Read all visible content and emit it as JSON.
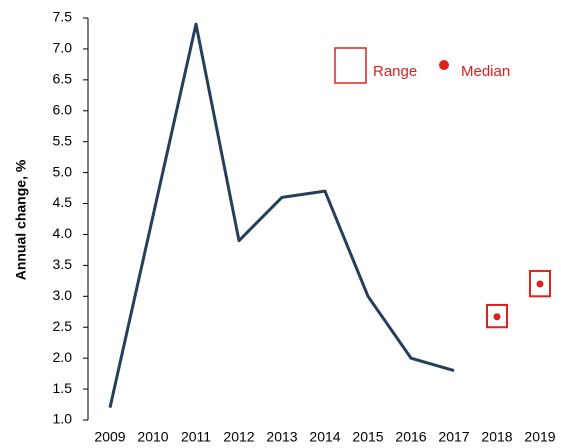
{
  "chart_data": {
    "type": "line",
    "y_label": "Annual change,  %",
    "categories": [
      "2009",
      "2010",
      "2011",
      "2012",
      "2013",
      "2014",
      "2015",
      "2016",
      "2017",
      "2018",
      "2019"
    ],
    "series": [
      {
        "color": "#243f5c",
        "values": [
          1.2,
          4.3,
          7.4,
          3.9,
          4.6,
          4.7,
          3.0,
          2.0,
          1.8,
          null,
          null
        ]
      }
    ],
    "range": {
      "name": "Range",
      "color": "#e0201f",
      "low": [
        null,
        null,
        null,
        null,
        null,
        null,
        null,
        null,
        null,
        2.5,
        3.0
      ],
      "high": [
        null,
        null,
        null,
        null,
        null,
        null,
        null,
        null,
        null,
        2.86,
        3.41
      ]
    },
    "median": {
      "name": "Median",
      "color": "#e0201f",
      "values": [
        null,
        null,
        null,
        null,
        null,
        null,
        null,
        null,
        null,
        2.67,
        3.2
      ]
    },
    "ylim": [
      1.0,
      7.5
    ],
    "yticks": [
      {
        "value": 1.0,
        "label": "1.0"
      },
      1.5,
      {
        "value": 2.0,
        "label": "2.0"
      },
      2.5,
      {
        "value": 3.0,
        "label": "3.0"
      },
      3.5,
      {
        "value": 4.0,
        "label": "4.0"
      },
      4.5,
      {
        "value": 5.0,
        "label": "5.0"
      },
      5.5,
      {
        "value": 6.0,
        "label": "6.0"
      },
      6.5,
      {
        "value": 7.0,
        "label": "7.0"
      },
      7.5
    ]
  }
}
